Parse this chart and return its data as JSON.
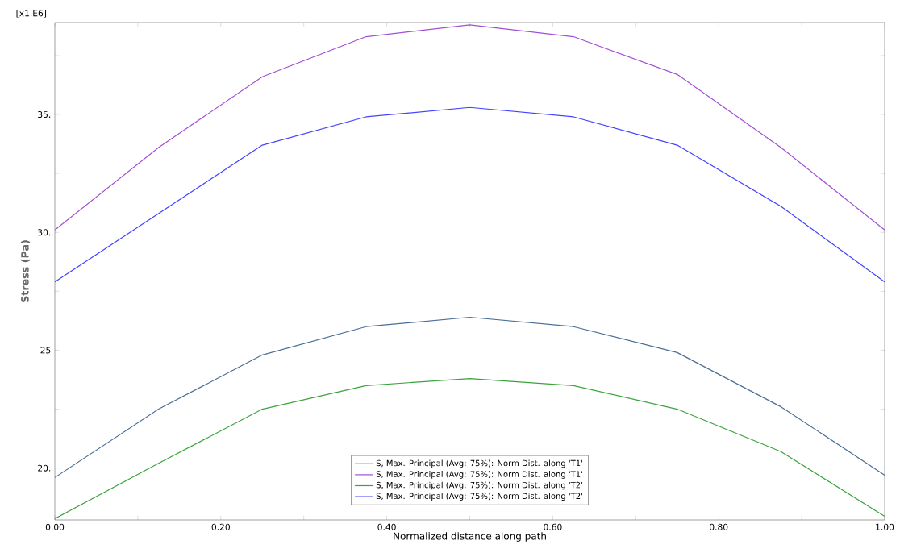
{
  "chart_data": {
    "type": "line",
    "xlabel": "Normalized distance along path",
    "ylabel": "Stress (Pa)",
    "annotations": [
      "[x1.E6]"
    ],
    "x": [
      0,
      0.125,
      0.25,
      0.375,
      0.5,
      0.625,
      0.75,
      0.875,
      1
    ],
    "series": [
      {
        "name": "S, Max. Principal (Avg: 75%): Norm Dist. along 'T1'",
        "color": "#4a6e96",
        "values": [
          19.6,
          22.5,
          24.8,
          26.0,
          26.4,
          26.0,
          24.9,
          22.6,
          19.7
        ]
      },
      {
        "name": "S, Max. Principal (Avg: 75%): Norm Dist. along 'T1'",
        "color": "#a24fd6",
        "values": [
          30.1,
          33.6,
          36.6,
          38.3,
          38.8,
          38.3,
          36.7,
          33.6,
          30.1
        ]
      },
      {
        "name": "S, Max. Principal (Avg: 75%): Norm Dist. along 'T2'",
        "color": "#3ca33c",
        "values": [
          17.85,
          20.2,
          22.5,
          23.5,
          23.8,
          23.5,
          22.5,
          20.7,
          17.95
        ]
      },
      {
        "name": "S, Max. Principal (Avg: 75%): Norm Dist. along 'T2'",
        "color": "#4444ff",
        "values": [
          27.9,
          30.8,
          33.7,
          34.9,
          35.3,
          34.9,
          33.7,
          31.1,
          27.9
        ]
      }
    ],
    "xlim": [
      0,
      1
    ],
    "ylim": [
      17.8,
      38.9
    ],
    "xticks": [
      {
        "value": 0,
        "label": "0.00"
      },
      {
        "value": 0.1,
        "label": null
      },
      {
        "value": 0.2,
        "label": "0.20"
      },
      {
        "value": 0.3,
        "label": null
      },
      {
        "value": 0.4,
        "label": "0.40"
      },
      {
        "value": 0.5,
        "label": null
      },
      {
        "value": 0.6,
        "label": "0.60"
      },
      {
        "value": 0.7,
        "label": null
      },
      {
        "value": 0.8,
        "label": "0.80"
      },
      {
        "value": 0.9,
        "label": null
      },
      {
        "value": 1,
        "label": "1.00"
      }
    ],
    "yticks": [
      {
        "value": 20,
        "label": "20."
      },
      {
        "value": 22.5,
        "label": null
      },
      {
        "value": 25,
        "label": "25"
      },
      {
        "value": 27.5,
        "label": null
      },
      {
        "value": 30,
        "label": "30."
      },
      {
        "value": 32.5,
        "label": null
      },
      {
        "value": 35,
        "label": "35."
      },
      {
        "value": 37.5,
        "label": null
      }
    ],
    "grid": false,
    "legend": "bottom",
    "marker": "none",
    "line_style": "solid"
  }
}
